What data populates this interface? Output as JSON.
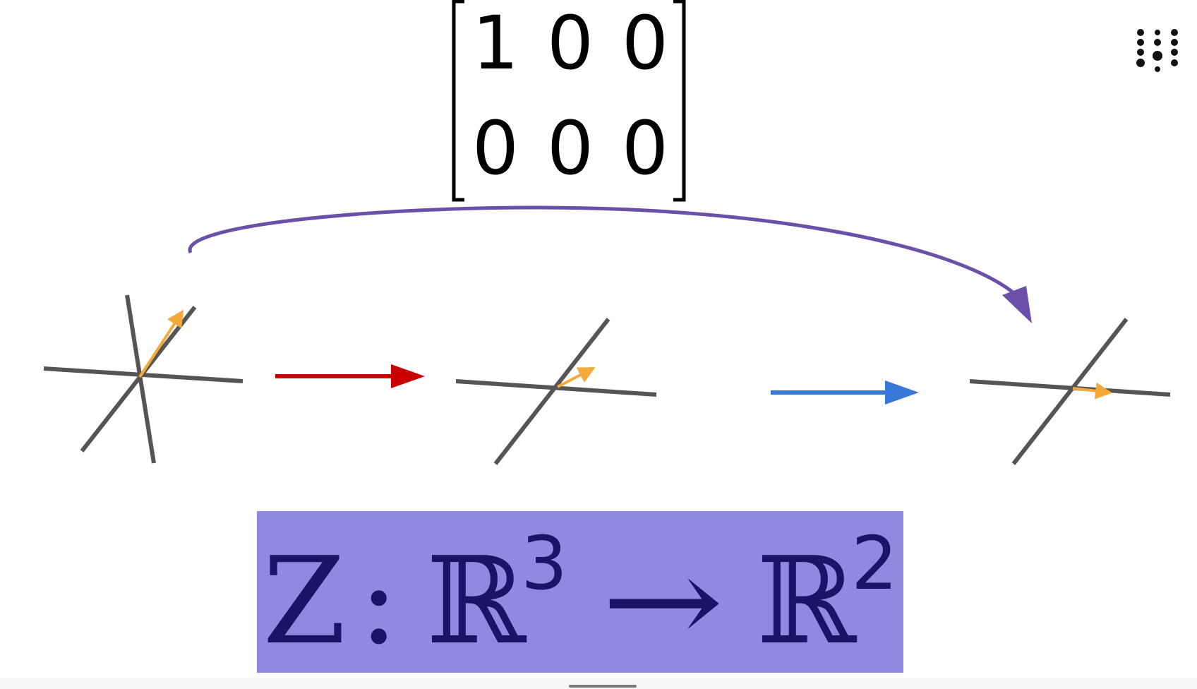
{
  "matrix": {
    "rows": [
      [
        "1",
        "0",
        "0"
      ],
      [
        "0",
        "0",
        "0"
      ]
    ]
  },
  "map_label": {
    "name": "Z",
    "colon": ":",
    "domain_symbol": "ℝ",
    "domain_exponent": "3",
    "arrow": "→",
    "codomain_symbol": "ℝ",
    "codomain_exponent": "2"
  },
  "colors": {
    "axis": "#555555",
    "vector": "#f5a93b",
    "first_arrow": "#c80000",
    "second_arrow": "#3a78d8",
    "composite_arrow": "#6a50a8",
    "label_background": "#9089e0",
    "label_text": "#1a1468"
  },
  "icons": {
    "menu": "dots-menu-icon"
  }
}
